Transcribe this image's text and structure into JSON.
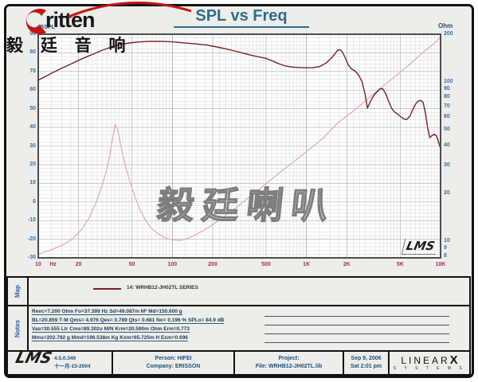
{
  "page": {
    "title": "SPL vs Freq"
  },
  "brand": {
    "word": "ritten",
    "cn": "毅 廷 音 响",
    "swoosh_color": "#c41414"
  },
  "watermark": "毅廷喇叭",
  "lms_signature": "LMS",
  "chart_data": {
    "type": "line",
    "title": "SPL vs Freq",
    "grid": true,
    "x_axis": {
      "scale": "log",
      "min": 10,
      "max": 10000,
      "unit": "Hz",
      "ticks": [
        {
          "f": 10,
          "t": "10"
        },
        {
          "f": 12.9,
          "t": "Hz"
        },
        {
          "f": 20,
          "t": "20"
        },
        {
          "f": 50,
          "t": "50"
        },
        {
          "f": 100,
          "t": "100"
        },
        {
          "f": 200,
          "t": "200"
        },
        {
          "f": 500,
          "t": "500"
        },
        {
          "f": 1000,
          "t": "1K"
        },
        {
          "f": 2000,
          "t": "2K"
        },
        {
          "f": 5000,
          "t": "5K"
        },
        {
          "f": 10000,
          "t": "10K"
        }
      ]
    },
    "y_left": {
      "label": "dBSPL",
      "scale": "linear",
      "min": -30,
      "max": 90,
      "ticks": [
        90,
        80,
        70,
        60,
        50,
        40,
        30,
        20,
        10,
        0,
        -10,
        -20,
        -30
      ]
    },
    "y_right": {
      "label": "Ohm",
      "scale": "log",
      "min": 8,
      "max": 200,
      "ticks": [
        200,
        100,
        90,
        80,
        70,
        60,
        50,
        40,
        30,
        20,
        10,
        9,
        8
      ]
    },
    "series": [
      {
        "name": "14: WRHB12-JH02TL  SERIES",
        "axis": "left",
        "color": "#7a2025",
        "width": 1.4,
        "points": [
          [
            10,
            65.3
          ],
          [
            11,
            66.9
          ],
          [
            12.5,
            69.0
          ],
          [
            14,
            70.8
          ],
          [
            16,
            72.7
          ],
          [
            18,
            74.4
          ],
          [
            20,
            76.0
          ],
          [
            23,
            77.9
          ],
          [
            26,
            79.5
          ],
          [
            30,
            81.4
          ],
          [
            34,
            82.8
          ],
          [
            38,
            83.9
          ],
          [
            43,
            84.8
          ],
          [
            48,
            85.3
          ],
          [
            55,
            85.8
          ],
          [
            65,
            86.1
          ],
          [
            75,
            86.2
          ],
          [
            85,
            86.1
          ],
          [
            100,
            85.9
          ],
          [
            120,
            85.4
          ],
          [
            150,
            84.8
          ],
          [
            180,
            84.2
          ],
          [
            200,
            83.6
          ],
          [
            250,
            82.2
          ],
          [
            300,
            80.8
          ],
          [
            350,
            79.5
          ],
          [
            400,
            78.5
          ],
          [
            450,
            77.7
          ],
          [
            500,
            77.0
          ],
          [
            560,
            75.6
          ],
          [
            620,
            74.2
          ],
          [
            700,
            72.9
          ],
          [
            800,
            72.3
          ],
          [
            900,
            72.1
          ],
          [
            1000,
            72.0
          ],
          [
            1100,
            72.0
          ],
          [
            1250,
            72.6
          ],
          [
            1400,
            74.5
          ],
          [
            1550,
            77.5
          ],
          [
            1700,
            81.3
          ],
          [
            1780,
            81.7
          ],
          [
            1850,
            80.6
          ],
          [
            1950,
            77.2
          ],
          [
            2050,
            73.6
          ],
          [
            2150,
            71.6
          ],
          [
            2300,
            70.3
          ],
          [
            2450,
            68.0
          ],
          [
            2600,
            64.5
          ],
          [
            2750,
            57.0
          ],
          [
            2850,
            50.3
          ],
          [
            3000,
            54.0
          ],
          [
            3200,
            57.5
          ],
          [
            3500,
            60.5
          ],
          [
            3700,
            60.8
          ],
          [
            3900,
            58.0
          ],
          [
            4100,
            54.0
          ],
          [
            4300,
            50.5
          ],
          [
            4500,
            48.5
          ],
          [
            4700,
            47.5
          ],
          [
            5000,
            46.0
          ],
          [
            5300,
            44.6
          ],
          [
            5600,
            44.2
          ],
          [
            5900,
            46.0
          ],
          [
            6200,
            49.5
          ],
          [
            6500,
            52.5
          ],
          [
            6800,
            54.0
          ],
          [
            7100,
            54.5
          ],
          [
            7400,
            53.5
          ],
          [
            7700,
            48.0
          ],
          [
            8000,
            40.0
          ],
          [
            8300,
            34.5
          ],
          [
            8600,
            35.5
          ],
          [
            9000,
            36.3
          ],
          [
            9300,
            35.5
          ],
          [
            9600,
            33.0
          ],
          [
            10000,
            28.5
          ]
        ]
      },
      {
        "name": "impedance",
        "axis": "right",
        "color": "#d9abae",
        "width": 1.2,
        "points": [
          [
            10,
            8.3
          ],
          [
            12,
            8.7
          ],
          [
            15,
            9.4
          ],
          [
            18,
            10.3
          ],
          [
            21,
            11.8
          ],
          [
            24,
            14.0
          ],
          [
            27,
            17.5
          ],
          [
            30,
            22.5
          ],
          [
            32,
            27.0
          ],
          [
            34,
            34.0
          ],
          [
            36,
            45.0
          ],
          [
            37.4,
            54.0
          ],
          [
            38.5,
            52.0
          ],
          [
            40,
            46.0
          ],
          [
            42,
            37.0
          ],
          [
            45,
            29.0
          ],
          [
            48,
            24.0
          ],
          [
            52,
            19.5
          ],
          [
            57,
            16.0
          ],
          [
            63,
            13.5
          ],
          [
            70,
            12.0
          ],
          [
            80,
            11.0
          ],
          [
            90,
            10.4
          ],
          [
            100,
            10.2
          ],
          [
            115,
            10.1
          ],
          [
            130,
            10.4
          ],
          [
            150,
            11.0
          ],
          [
            175,
            11.8
          ],
          [
            200,
            12.7
          ],
          [
            250,
            14.5
          ],
          [
            300,
            16.3
          ],
          [
            400,
            19.8
          ],
          [
            500,
            23.0
          ],
          [
            650,
            27.5
          ],
          [
            800,
            31.5
          ],
          [
            1000,
            36.5
          ],
          [
            1300,
            43.5
          ],
          [
            1700,
            55.0
          ],
          [
            2200,
            65.0
          ],
          [
            2800,
            77.0
          ],
          [
            3600,
            92.0
          ],
          [
            4700,
            110.0
          ],
          [
            6000,
            131.0
          ],
          [
            7500,
            155.0
          ],
          [
            9000,
            175.0
          ],
          [
            10000,
            192.0
          ]
        ]
      }
    ]
  },
  "map": {
    "label": "Map",
    "legend": "14: WRHB12-JH02TL  SERIES"
  },
  "notes": {
    "label": "Notes",
    "lines": [
      "Revc=7.200 Ohm  Fo=37.399 Hz  Sd=49.087m M²  Md=150.600 g",
      "BL=20.859 T·M  Qms= 4.976  Qes= 0.789  Qts= 0.681  No= 0.196 %  SPLo= 84.9 dB",
      "Vas=30.555 Ltr  Cms=89.302u M/N  Krm=20.590m Ohm  Erm=0.773",
      "Mms=202.792 g  Mmd=196.538m Kg  Kxm=65.725m H  Exm=0.696"
    ]
  },
  "footer": {
    "version": "4.5.0.349",
    "version_date": "十一月-15-2004",
    "person": "Person: HIFEI",
    "company": "Company: ERISSON",
    "project": "Project:",
    "file": "File: WRHB12-JH02TL.lib",
    "date": "Sep  9, 2006",
    "time": "Sat  2:01 pm",
    "linearx": {
      "word": "LINEAR",
      "x": "X",
      "sub": "S Y S T E M S"
    }
  }
}
